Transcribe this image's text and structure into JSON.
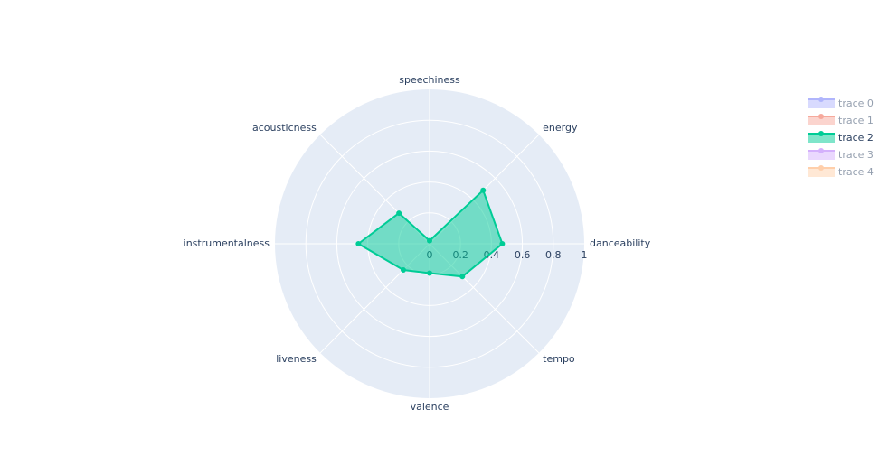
{
  "chart_data": {
    "type": "radar",
    "categories": [
      "danceability",
      "energy",
      "speechiness",
      "acousticness",
      "instrumentalness",
      "liveness",
      "valence",
      "tempo"
    ],
    "series": [
      {
        "name": "trace 0",
        "color": "#636efa",
        "visible": "legendonly"
      },
      {
        "name": "trace 1",
        "color": "#ef553b",
        "visible": "legendonly"
      },
      {
        "name": "trace 2",
        "color": "#00cc96",
        "visible": true,
        "values": [
          0.47,
          0.49,
          0.02,
          0.28,
          0.46,
          0.24,
          0.19,
          0.3
        ]
      },
      {
        "name": "trace 3",
        "color": "#ab63fa",
        "visible": "legendonly"
      },
      {
        "name": "trace 4",
        "color": "#ffa15a",
        "visible": "legendonly"
      }
    ],
    "rlim": [
      0,
      1
    ],
    "rticks": [
      0,
      0.2,
      0.4,
      0.6,
      0.8,
      1
    ],
    "grid": true,
    "legend": "right"
  }
}
